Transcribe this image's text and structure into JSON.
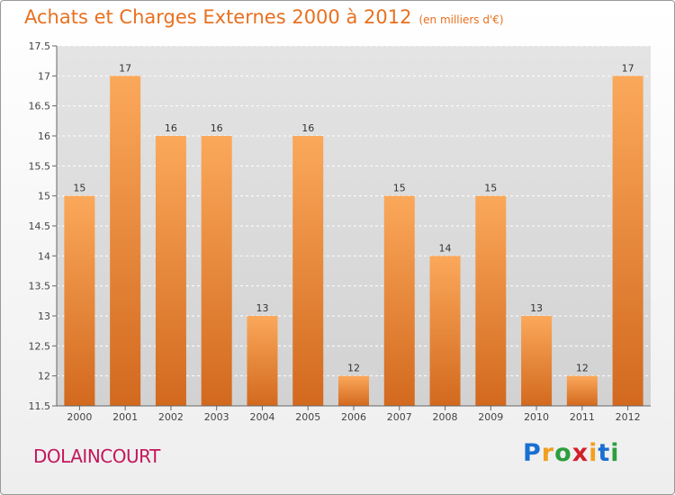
{
  "chart_data": {
    "type": "bar",
    "title": "Achats et Charges Externes 2000 à 2012",
    "subtitle": "(en milliers d'€)",
    "categories": [
      "2000",
      "2001",
      "2002",
      "2003",
      "2004",
      "2005",
      "2006",
      "2007",
      "2008",
      "2009",
      "2010",
      "2011",
      "2012"
    ],
    "values": [
      15,
      17,
      16,
      16,
      13,
      16,
      12,
      15,
      14,
      15,
      13,
      12,
      17
    ],
    "ylim": [
      11.5,
      17.5
    ],
    "yticks": [
      "11.5",
      "12",
      "12.5",
      "13",
      "13.5",
      "14",
      "14.5",
      "15",
      "15.5",
      "16",
      "16.5",
      "17",
      "17.5"
    ],
    "grid": true,
    "bar_color_top": "#fba85a",
    "bar_color_bottom": "#d2691e"
  },
  "commune": "DOLAINCOURT",
  "logo": {
    "letters": [
      "P",
      "r",
      "o",
      "x",
      "i",
      "t",
      "i"
    ],
    "colors": [
      "#1a6fd0",
      "#f0a020",
      "#2e9e3e",
      "#d0202a",
      "#f0a020",
      "#1a6fd0",
      "#2e9e3e"
    ]
  }
}
